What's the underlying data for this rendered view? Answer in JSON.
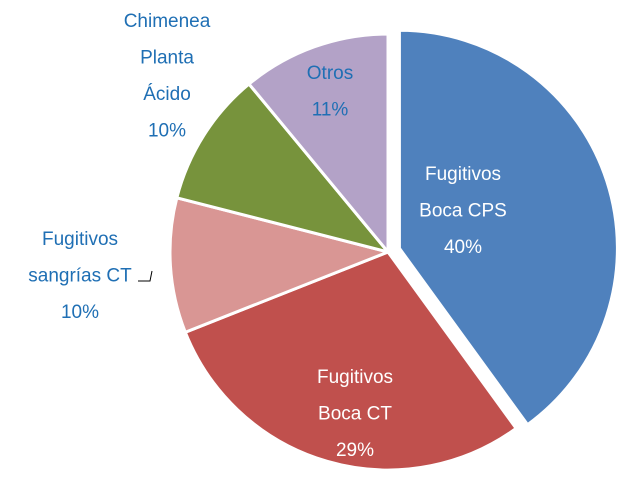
{
  "chart_data": {
    "type": "pie",
    "categories": [
      "Fugitivos Boca CPS",
      "Fugitivos Boca CT",
      "Fugitivos sangrías CT",
      "Chimenea Planta Ácido",
      "Otros"
    ],
    "values": [
      40,
      29,
      10,
      10,
      11
    ],
    "value_labels": [
      "40%",
      "29%",
      "10%",
      "10%",
      "11%"
    ],
    "colors": [
      "#4f81bd",
      "#c0504d",
      "#d99694",
      "#77933c",
      "#b3a2c7"
    ]
  }
}
